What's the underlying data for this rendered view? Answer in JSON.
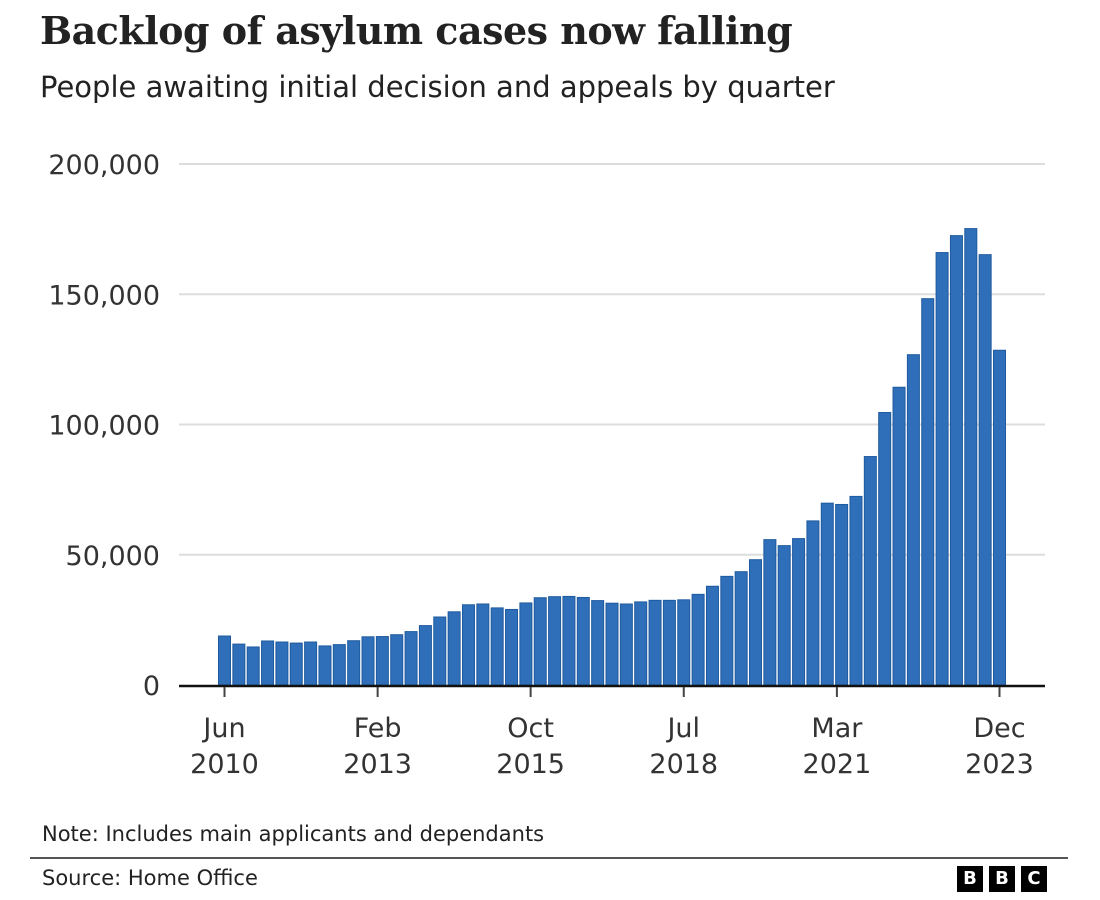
{
  "header": {
    "title": "Backlog of asylum cases now falling",
    "subtitle": "People awaiting initial decision and appeals by quarter"
  },
  "footer": {
    "note": "Note: Includes main applicants and dependants",
    "source": "Source: Home Office",
    "logo_letters": [
      "B",
      "B",
      "C"
    ]
  },
  "colors": {
    "bar": "#2f6fb9",
    "bar_edge": "#1f5a9e",
    "grid": "#dddddd",
    "axis": "#111111"
  },
  "chart_data": {
    "type": "bar",
    "title": "Backlog of asylum cases now falling",
    "subtitle": "People awaiting initial decision and appeals by quarter",
    "xlabel": "",
    "ylabel": "",
    "ylim": [
      0,
      200000
    ],
    "grid": true,
    "legend": "none",
    "yticks": [
      {
        "value": 0,
        "label": "0"
      },
      {
        "value": 50000,
        "label": "50,000"
      },
      {
        "value": 100000,
        "label": "100,000"
      },
      {
        "value": 150000,
        "label": "150,000"
      },
      {
        "value": 200000,
        "label": "200,000"
      }
    ],
    "xticks": [
      {
        "index": 0,
        "line1": "Jun",
        "line2": "2010"
      },
      {
        "index": 10.67,
        "line1": "Feb",
        "line2": "2013"
      },
      {
        "index": 21.33,
        "line1": "Oct",
        "line2": "2015"
      },
      {
        "index": 32,
        "line1": "Jul",
        "line2": "2018"
      },
      {
        "index": 42.67,
        "line1": "Mar",
        "line2": "2021"
      },
      {
        "index": 54,
        "line1": "Dec",
        "line2": "2023"
      }
    ],
    "x_start": "Jun 2010",
    "x_end": "Dec 2023",
    "frequency": "quarterly",
    "series": [
      {
        "name": "People awaiting decision",
        "values": [
          18800,
          15700,
          14600,
          16900,
          16500,
          16100,
          16500,
          15000,
          15500,
          17000,
          18500,
          18600,
          19300,
          20500,
          22800,
          26100,
          28100,
          30800,
          31100,
          29600,
          29000,
          31500,
          33500,
          33900,
          34000,
          33600,
          32400,
          31400,
          31100,
          31900,
          32500,
          32500,
          32700,
          34800,
          37900,
          41700,
          43500,
          48100,
          55800,
          53500,
          56200,
          63000,
          69800,
          69300,
          72400,
          87700,
          104600,
          114300,
          126800,
          148300,
          166000,
          172500,
          175200,
          165200,
          128500
        ]
      }
    ]
  }
}
